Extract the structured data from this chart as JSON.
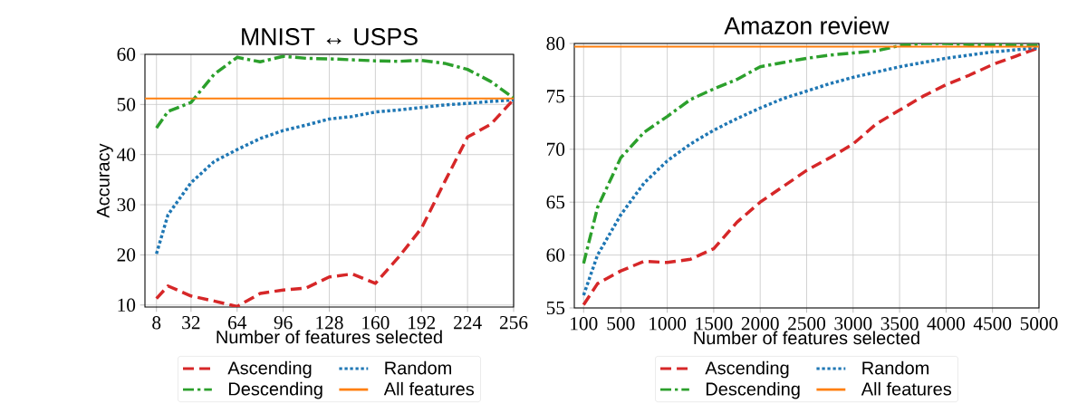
{
  "chart_data": [
    {
      "type": "line",
      "title": "MNIST ↔ USPS",
      "xlabel": "Number of features selected",
      "ylabel": "Accuracy",
      "xlim": [
        0,
        256
      ],
      "ylim": [
        9.6,
        60
      ],
      "xticks": [
        8,
        32,
        64,
        96,
        128,
        160,
        192,
        224,
        256
      ],
      "yticks": [
        10,
        20,
        30,
        40,
        50,
        60
      ],
      "grid": true,
      "legend": "bottom",
      "marker": "none",
      "x": [
        8,
        16,
        32,
        48,
        64,
        80,
        96,
        112,
        128,
        144,
        160,
        176,
        192,
        208,
        224,
        240,
        256
      ],
      "series": [
        {
          "name": "Ascending",
          "color": "#d62728",
          "line_style": "dashed",
          "values": [
            11.3,
            13.8,
            11.8,
            10.8,
            9.7,
            12.3,
            13.0,
            13.4,
            15.6,
            16.2,
            14.3,
            19.5,
            25.3,
            34.5,
            43.5,
            46.0,
            51.0
          ]
        },
        {
          "name": "Descending",
          "color": "#2ca02c",
          "line_style": "dashdot",
          "values": [
            45.3,
            48.6,
            50.4,
            56.0,
            59.4,
            58.5,
            59.6,
            59.2,
            59.1,
            58.9,
            58.7,
            58.6,
            58.8,
            58.2,
            57.0,
            54.6,
            51.3
          ]
        },
        {
          "name": "Random",
          "color": "#1f77b4",
          "line_style": "dotted",
          "values": [
            20.2,
            28.0,
            34.4,
            38.6,
            41.0,
            43.2,
            44.8,
            45.9,
            47.1,
            47.6,
            48.5,
            48.9,
            49.4,
            49.9,
            50.2,
            50.6,
            50.9
          ]
        },
        {
          "name": "All features",
          "color": "#ff7f0e",
          "line_style": "solid",
          "x": [
            0,
            256
          ],
          "values": [
            51.2,
            51.2
          ]
        }
      ]
    },
    {
      "type": "line",
      "title": "Amazon review",
      "xlabel": "Number of features selected",
      "xlim": [
        0,
        5000
      ],
      "ylim": [
        55,
        80
      ],
      "xticks": [
        100,
        500,
        1000,
        1500,
        2000,
        2500,
        3000,
        3500,
        4000,
        4500,
        5000
      ],
      "yticks": [
        55,
        60,
        65,
        70,
        75,
        80
      ],
      "grid": true,
      "legend": "bottom",
      "marker": "none",
      "x": [
        100,
        250,
        500,
        750,
        1000,
        1250,
        1500,
        1750,
        2000,
        2250,
        2500,
        2750,
        3000,
        3250,
        3500,
        3750,
        4000,
        4250,
        4500,
        4750,
        5000
      ],
      "series": [
        {
          "name": "Ascending",
          "color": "#d62728",
          "line_style": "dashed",
          "values": [
            55.3,
            57.3,
            58.5,
            59.4,
            59.3,
            59.6,
            60.6,
            63.1,
            65.0,
            66.5,
            68.0,
            69.2,
            70.5,
            72.4,
            73.7,
            75.0,
            76.1,
            77.0,
            78.0,
            78.8,
            79.6
          ]
        },
        {
          "name": "Descending",
          "color": "#2ca02c",
          "line_style": "dashdot",
          "values": [
            59.2,
            64.5,
            69.2,
            71.6,
            73.1,
            74.7,
            75.7,
            76.6,
            77.8,
            78.2,
            78.6,
            78.9,
            79.1,
            79.3,
            79.8,
            80.0,
            80.0,
            79.9,
            79.9,
            79.8,
            79.8
          ]
        },
        {
          "name": "Random",
          "color": "#1f77b4",
          "line_style": "dotted",
          "values": [
            56.2,
            60.0,
            63.8,
            66.8,
            68.9,
            70.5,
            71.8,
            72.9,
            73.9,
            74.8,
            75.5,
            76.2,
            76.8,
            77.3,
            77.8,
            78.2,
            78.6,
            78.9,
            79.2,
            79.4,
            79.6
          ]
        },
        {
          "name": "All features",
          "color": "#ff7f0e",
          "line_style": "solid",
          "x": [
            0,
            5000
          ],
          "values": [
            79.7,
            79.7
          ]
        }
      ]
    }
  ]
}
